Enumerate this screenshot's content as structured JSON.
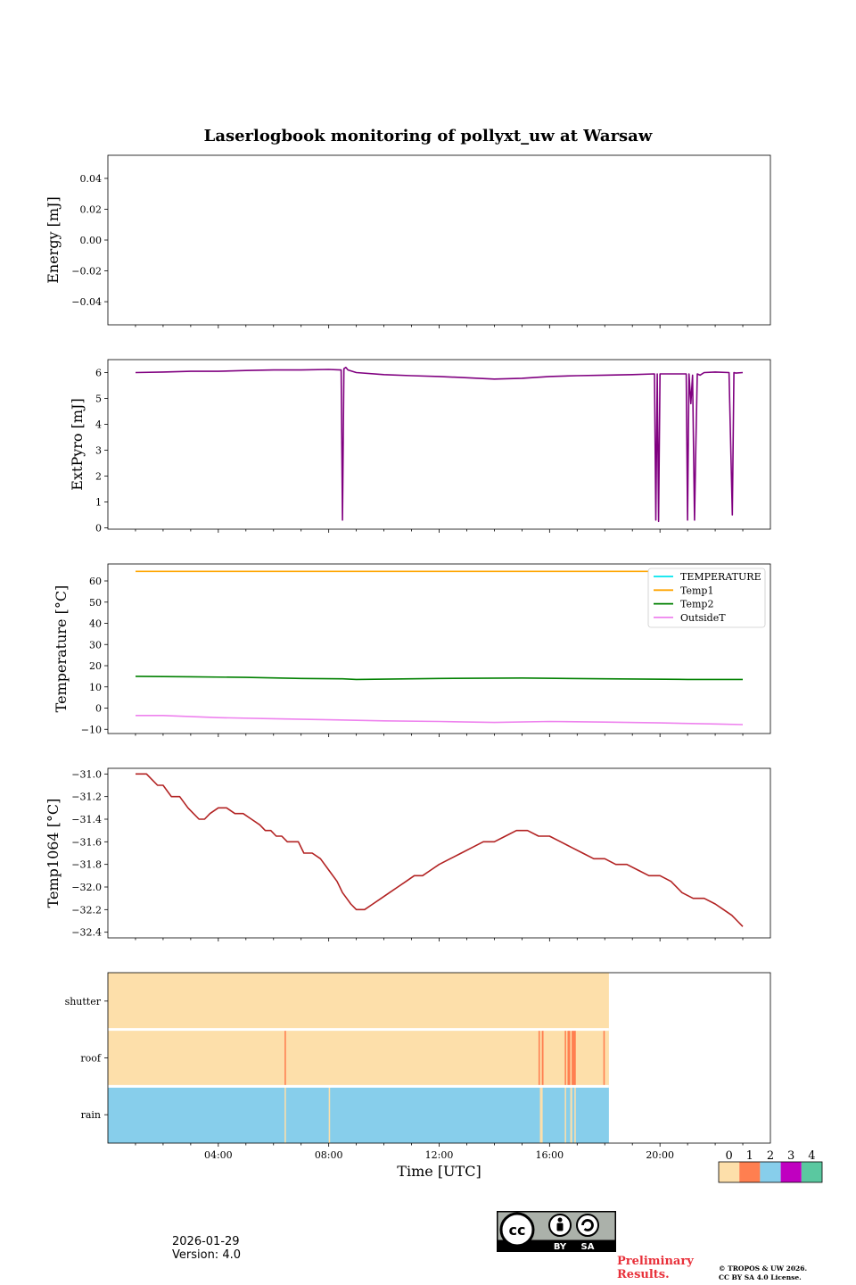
{
  "chart_data": [
    {
      "type": "line",
      "title": "Laserlogbook monitoring of pollyxt_uw at Warsaw",
      "ylabel": "Energy [mJ]",
      "ylim": [
        -0.055,
        0.055
      ],
      "yticks": [
        0.04,
        0.02,
        0.0,
        -0.02,
        -0.04
      ],
      "ytick_labels": [
        "0.04",
        "0.02",
        "0.00",
        "−0.02",
        "−0.04"
      ],
      "series": []
    },
    {
      "type": "line",
      "ylabel": "ExtPyro [mJ]",
      "ylim": [
        -0.05,
        6.5
      ],
      "yticks": [
        0,
        1,
        2,
        3,
        4,
        5,
        6
      ],
      "ytick_labels": [
        "0",
        "1",
        "2",
        "3",
        "4",
        "5",
        "6"
      ],
      "series": [
        {
          "name": "ExtPyro",
          "color": "#800080",
          "x": [
            1.0,
            2.0,
            3.0,
            4.0,
            5.0,
            6.0,
            7.0,
            8.0,
            8.45,
            8.5,
            8.55,
            8.62,
            8.7,
            9.0,
            10.0,
            11.0,
            12.0,
            13.0,
            14.0,
            15.0,
            16.0,
            17.0,
            18.0,
            19.0,
            19.8,
            19.85,
            19.9,
            19.95,
            20.0,
            20.5,
            20.95,
            21.0,
            21.05,
            21.12,
            21.18,
            21.25,
            21.3,
            21.35,
            21.45,
            21.6,
            22.0,
            22.5,
            22.62,
            22.68,
            22.75,
            23.0
          ],
          "values": [
            6.0,
            6.02,
            6.05,
            6.05,
            6.08,
            6.1,
            6.1,
            6.12,
            6.1,
            0.3,
            6.15,
            6.2,
            6.1,
            6.0,
            5.92,
            5.88,
            5.85,
            5.8,
            5.75,
            5.78,
            5.85,
            5.88,
            5.9,
            5.92,
            5.95,
            0.3,
            5.95,
            0.25,
            5.95,
            5.95,
            5.95,
            0.3,
            5.95,
            4.8,
            5.9,
            0.3,
            3.2,
            5.95,
            5.9,
            6.0,
            6.02,
            6.0,
            0.5,
            6.0,
            5.98,
            6.0
          ]
        }
      ]
    },
    {
      "type": "line",
      "ylabel": "Temperature [°C]",
      "ylim": [
        -12,
        68
      ],
      "yticks": [
        60,
        50,
        40,
        30,
        20,
        10,
        0,
        -10
      ],
      "ytick_labels": [
        "60",
        "50",
        "40",
        "30",
        "20",
        "10",
        "0",
        "−10"
      ],
      "legend": "top-right",
      "series": [
        {
          "name": "TEMPERATURE",
          "color": "#00e5ee",
          "x": [],
          "values": []
        },
        {
          "name": "Temp1",
          "color": "#ffa500",
          "x": [
            1.0,
            23.0
          ],
          "values": [
            64.5,
            64.5
          ]
        },
        {
          "name": "Temp2",
          "color": "#008000",
          "x": [
            1.0,
            3.0,
            5.0,
            7.0,
            8.5,
            9.0,
            12.0,
            15.0,
            18.0,
            21.0,
            23.0
          ],
          "values": [
            15.0,
            14.8,
            14.5,
            14.0,
            13.8,
            13.5,
            14.0,
            14.2,
            13.8,
            13.5,
            13.5
          ]
        },
        {
          "name": "OutsideT",
          "color": "#ee82ee",
          "x": [
            1.0,
            2.0,
            4.0,
            6.0,
            8.0,
            10.0,
            12.0,
            14.0,
            16.0,
            18.0,
            20.0,
            22.0,
            23.0
          ],
          "values": [
            -3.5,
            -3.5,
            -4.5,
            -5.0,
            -5.5,
            -6.0,
            -6.3,
            -6.8,
            -6.3,
            -6.6,
            -7.0,
            -7.5,
            -7.8
          ]
        }
      ]
    },
    {
      "type": "line",
      "ylabel": "Temp1064 [°C]",
      "ylim": [
        -32.45,
        -30.95
      ],
      "yticks": [
        -31.0,
        -31.2,
        -31.4,
        -31.6,
        -31.8,
        -32.0,
        -32.2,
        -32.4
      ],
      "ytick_labels": [
        "−31.0",
        "−31.2",
        "−31.4",
        "−31.6",
        "−31.8",
        "−32.0",
        "−32.2",
        "−32.4"
      ],
      "series": [
        {
          "name": "Temp1064",
          "color": "#b22222",
          "x": [
            1.0,
            1.4,
            1.6,
            1.8,
            2.0,
            2.3,
            2.6,
            2.9,
            3.1,
            3.3,
            3.5,
            3.7,
            4.0,
            4.3,
            4.6,
            4.9,
            5.2,
            5.5,
            5.7,
            5.9,
            6.1,
            6.3,
            6.5,
            6.7,
            6.9,
            7.1,
            7.4,
            7.7,
            8.0,
            8.3,
            8.5,
            8.65,
            8.8,
            9.0,
            9.3,
            9.6,
            9.9,
            10.2,
            10.5,
            10.8,
            11.1,
            11.4,
            11.7,
            12.0,
            12.4,
            12.8,
            13.2,
            13.6,
            14.0,
            14.4,
            14.8,
            15.2,
            15.6,
            16.0,
            16.4,
            16.8,
            17.2,
            17.6,
            18.0,
            18.4,
            18.8,
            19.2,
            19.6,
            20.0,
            20.4,
            20.8,
            21.2,
            21.6,
            22.0,
            22.3,
            22.6,
            22.8,
            23.0
          ],
          "values": [
            -31.0,
            -31.0,
            -31.05,
            -31.1,
            -31.1,
            -31.2,
            -31.2,
            -31.3,
            -31.35,
            -31.4,
            -31.4,
            -31.35,
            -31.3,
            -31.3,
            -31.35,
            -31.35,
            -31.4,
            -31.45,
            -31.5,
            -31.5,
            -31.55,
            -31.55,
            -31.6,
            -31.6,
            -31.6,
            -31.7,
            -31.7,
            -31.75,
            -31.85,
            -31.95,
            -32.05,
            -32.1,
            -32.15,
            -32.2,
            -32.2,
            -32.15,
            -32.1,
            -32.05,
            -32.0,
            -31.95,
            -31.9,
            -31.9,
            -31.85,
            -31.8,
            -31.75,
            -31.7,
            -31.65,
            -31.6,
            -31.6,
            -31.55,
            -31.5,
            -31.5,
            -31.55,
            -31.55,
            -31.6,
            -31.65,
            -31.7,
            -31.75,
            -31.75,
            -31.8,
            -31.8,
            -31.85,
            -31.9,
            -31.9,
            -31.95,
            -32.05,
            -32.1,
            -32.1,
            -32.15,
            -32.2,
            -32.25,
            -32.3,
            -32.35
          ]
        }
      ]
    },
    {
      "type": "heatmap",
      "xlabel": "Time [UTC]",
      "xlim": [
        0,
        24
      ],
      "xticks": [
        4,
        8,
        12,
        16,
        20
      ],
      "xtick_labels": [
        "04:00",
        "08:00",
        "12:00",
        "16:00",
        "20:00"
      ],
      "rows": [
        "shutter",
        "roof",
        "rain"
      ],
      "data_end_hour": 18.15,
      "row_data": [
        {
          "name": "shutter",
          "base": 0,
          "segments": []
        },
        {
          "name": "roof",
          "base": 0,
          "segments": [
            {
              "start": 6.4,
              "end": 6.45,
              "value": 1
            },
            {
              "start": 15.6,
              "end": 15.65,
              "value": 1
            },
            {
              "start": 15.72,
              "end": 15.78,
              "value": 1
            },
            {
              "start": 16.55,
              "end": 16.6,
              "value": 1
            },
            {
              "start": 16.65,
              "end": 16.75,
              "value": 1
            },
            {
              "start": 16.8,
              "end": 16.95,
              "value": 1
            },
            {
              "start": 17.95,
              "end": 18.0,
              "value": 1
            }
          ]
        },
        {
          "name": "rain",
          "base": 2,
          "segments": [
            {
              "start": 6.4,
              "end": 6.45,
              "value": 0
            },
            {
              "start": 8.0,
              "end": 8.05,
              "value": 0
            },
            {
              "start": 15.65,
              "end": 15.75,
              "value": 0
            },
            {
              "start": 16.55,
              "end": 16.6,
              "value": 0
            },
            {
              "start": 16.75,
              "end": 16.82,
              "value": 0
            },
            {
              "start": 16.9,
              "end": 16.95,
              "value": 0
            }
          ]
        }
      ],
      "colorbar": {
        "labels": [
          "0",
          "1",
          "2",
          "3",
          "4"
        ],
        "colors": [
          "#fddfaa",
          "#ff7f50",
          "#87ceeb",
          "#c000c0",
          "#5ac8a0"
        ]
      }
    }
  ],
  "footer": {
    "date": "2026-01-29",
    "version": "Version: 4.0",
    "preliminary_line1": "Preliminary",
    "preliminary_line2": "Results.",
    "copyright_line1": "© TROPOS & UW 2026.",
    "copyright_line2": "CC BY SA 4.0 License.",
    "license_labels": [
      "BY",
      "SA"
    ],
    "license_mark": "cc"
  }
}
